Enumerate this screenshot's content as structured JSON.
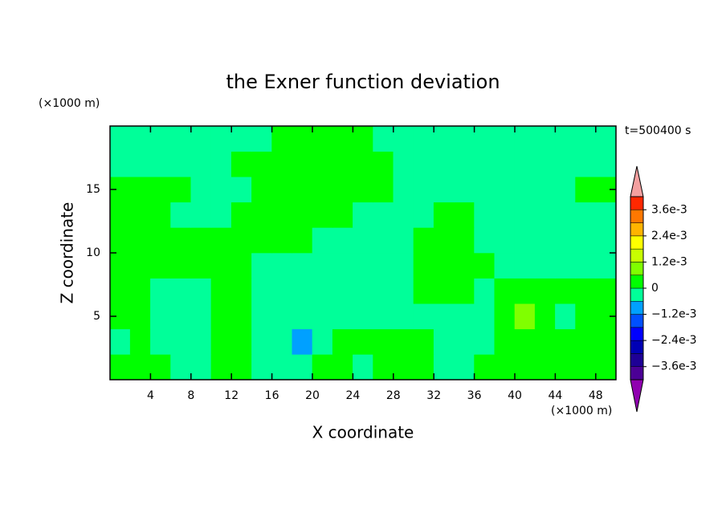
{
  "chart_data": {
    "type": "contour",
    "title": "the Exner function deviation",
    "x_label": "X coordinate",
    "y_label": "Z coordinate",
    "x_unit": "(×1000 m)",
    "y_unit": "(×1000 m)",
    "time_label": "t=500400 s",
    "xlim": [
      0,
      50
    ],
    "ylim": [
      0,
      20
    ],
    "xticks": [
      4,
      8,
      12,
      16,
      20,
      24,
      28,
      32,
      36,
      40,
      44,
      48
    ],
    "yticks": [
      5,
      10,
      15
    ],
    "x": [
      1,
      3,
      5,
      7,
      9,
      11,
      13,
      15,
      17,
      19,
      21,
      23,
      25,
      27,
      29,
      31,
      33,
      35,
      37,
      39,
      41,
      43,
      45,
      47,
      49
    ],
    "y": [
      1,
      3,
      5,
      7,
      9,
      11,
      13,
      15,
      17,
      19
    ],
    "z": [
      [
        0.0003,
        0.0003,
        0.0003,
        -0.0003,
        -0.0003,
        0.0003,
        0.0003,
        -0.0003,
        -0.0003,
        -0.0003,
        0.0003,
        0.0003,
        -0.0003,
        0.0003,
        0.0003,
        0.0003,
        -0.0003,
        -0.0003,
        0.0003,
        0.0003,
        0.0003,
        0.0003,
        0.0003,
        0.0003,
        0.0003
      ],
      [
        -0.0003,
        0.0003,
        -0.0003,
        -0.0003,
        -0.0003,
        0.0003,
        0.0003,
        -0.0003,
        -0.0003,
        -0.0009,
        -0.0003,
        0.0003,
        0.0003,
        0.0003,
        0.0003,
        0.0003,
        -0.0003,
        -0.0003,
        -0.0003,
        0.0003,
        0.0003,
        0.0003,
        0.0003,
        0.0003,
        0.0003
      ],
      [
        0.0003,
        0.0003,
        -0.0003,
        -0.0003,
        -0.0003,
        0.0003,
        0.0003,
        -0.0003,
        -0.0003,
        -0.0003,
        -0.0003,
        -0.0003,
        -0.0003,
        -0.0003,
        -0.0003,
        -0.0003,
        -0.0003,
        -0.0003,
        -0.0003,
        0.0003,
        0.0009,
        0.0003,
        -0.0003,
        0.0003,
        0.0003
      ],
      [
        0.0003,
        0.0003,
        -0.0003,
        -0.0003,
        -0.0003,
        0.0003,
        0.0003,
        -0.0003,
        -0.0003,
        -0.0003,
        -0.0003,
        -0.0003,
        -0.0003,
        -0.0003,
        -0.0003,
        0.0003,
        0.0003,
        0.0003,
        -0.0003,
        0.0003,
        0.0003,
        0.0003,
        0.0003,
        0.0003,
        0.0003
      ],
      [
        0.0003,
        0.0003,
        0.0003,
        0.0003,
        0.0003,
        0.0003,
        0.0003,
        -0.0003,
        -0.0003,
        -0.0003,
        -0.0003,
        -0.0003,
        -0.0003,
        -0.0003,
        -0.0003,
        0.0003,
        0.0003,
        0.0003,
        0.0003,
        -0.0003,
        -0.0003,
        -0.0003,
        -0.0003,
        -0.0003,
        -0.0003
      ],
      [
        0.0003,
        0.0003,
        0.0003,
        0.0003,
        0.0003,
        0.0003,
        0.0003,
        0.0003,
        0.0003,
        0.0003,
        -0.0003,
        -0.0003,
        -0.0003,
        -0.0003,
        -0.0003,
        0.0003,
        0.0003,
        0.0003,
        -0.0003,
        -0.0003,
        -0.0003,
        -0.0003,
        -0.0003,
        -0.0003,
        -0.0003
      ],
      [
        0.0003,
        0.0003,
        0.0003,
        -0.0003,
        -0.0003,
        -0.0003,
        0.0003,
        0.0003,
        0.0003,
        0.0003,
        0.0003,
        0.0003,
        -0.0003,
        -0.0003,
        -0.0003,
        -0.0003,
        0.0003,
        0.0003,
        -0.0003,
        -0.0003,
        -0.0003,
        -0.0003,
        -0.0003,
        -0.0003,
        -0.0003
      ],
      [
        0.0003,
        0.0003,
        0.0003,
        0.0003,
        -0.0003,
        -0.0003,
        -0.0003,
        0.0003,
        0.0003,
        0.0003,
        0.0003,
        0.0003,
        0.0003,
        0.0003,
        -0.0003,
        -0.0003,
        -0.0003,
        -0.0003,
        -0.0003,
        -0.0003,
        -0.0003,
        -0.0003,
        -0.0003,
        0.0003,
        0.0003
      ],
      [
        -0.0003,
        -0.0003,
        -0.0003,
        -0.0003,
        -0.0003,
        -0.0003,
        0.0003,
        0.0003,
        0.0003,
        0.0003,
        0.0003,
        0.0003,
        0.0003,
        0.0003,
        -0.0003,
        -0.0003,
        -0.0003,
        -0.0003,
        -0.0003,
        -0.0003,
        -0.0003,
        -0.0003,
        -0.0003,
        -0.0003,
        -0.0003
      ],
      [
        -0.0003,
        -0.0003,
        -0.0003,
        -0.0003,
        -0.0003,
        -0.0003,
        -0.0003,
        -0.0003,
        0.0003,
        0.0003,
        0.0003,
        0.0003,
        0.0003,
        -0.0003,
        -0.0003,
        -0.0003,
        -0.0003,
        -0.0003,
        -0.0003,
        -0.0003,
        -0.0003,
        -0.0003,
        -0.0003,
        -0.0003,
        -0.0003
      ]
    ],
    "levels": [
      -0.0042,
      -0.0036,
      -0.003,
      -0.0024,
      -0.0018,
      -0.0012,
      -0.0006,
      0,
      0.0006,
      0.0012,
      0.0018,
      0.0024,
      0.003,
      0.0036,
      0.0042
    ],
    "colors": [
      "#4b0096",
      "#1e0096",
      "#0000b4",
      "#0000ff",
      "#0050ff",
      "#00a0ff",
      "#00ff99",
      "#00ff00",
      "#80ff00",
      "#c8ff00",
      "#ffff00",
      "#ffb400",
      "#ff7800",
      "#ff2800"
    ],
    "under_color": "#9000b0",
    "over_color": "#f4a0a0",
    "colorbar_ticks": [
      {
        "value": 0.0036,
        "label": "3.6e-3"
      },
      {
        "value": 0.0024,
        "label": "2.4e-3"
      },
      {
        "value": 0.0012,
        "label": "1.2e-3"
      },
      0,
      {
        "value": -0.0012,
        "label": "−1.2e-3"
      },
      {
        "value": -0.0024,
        "label": "−2.4e-3"
      },
      {
        "value": -0.0036,
        "label": "−3.6e-3"
      }
    ]
  }
}
